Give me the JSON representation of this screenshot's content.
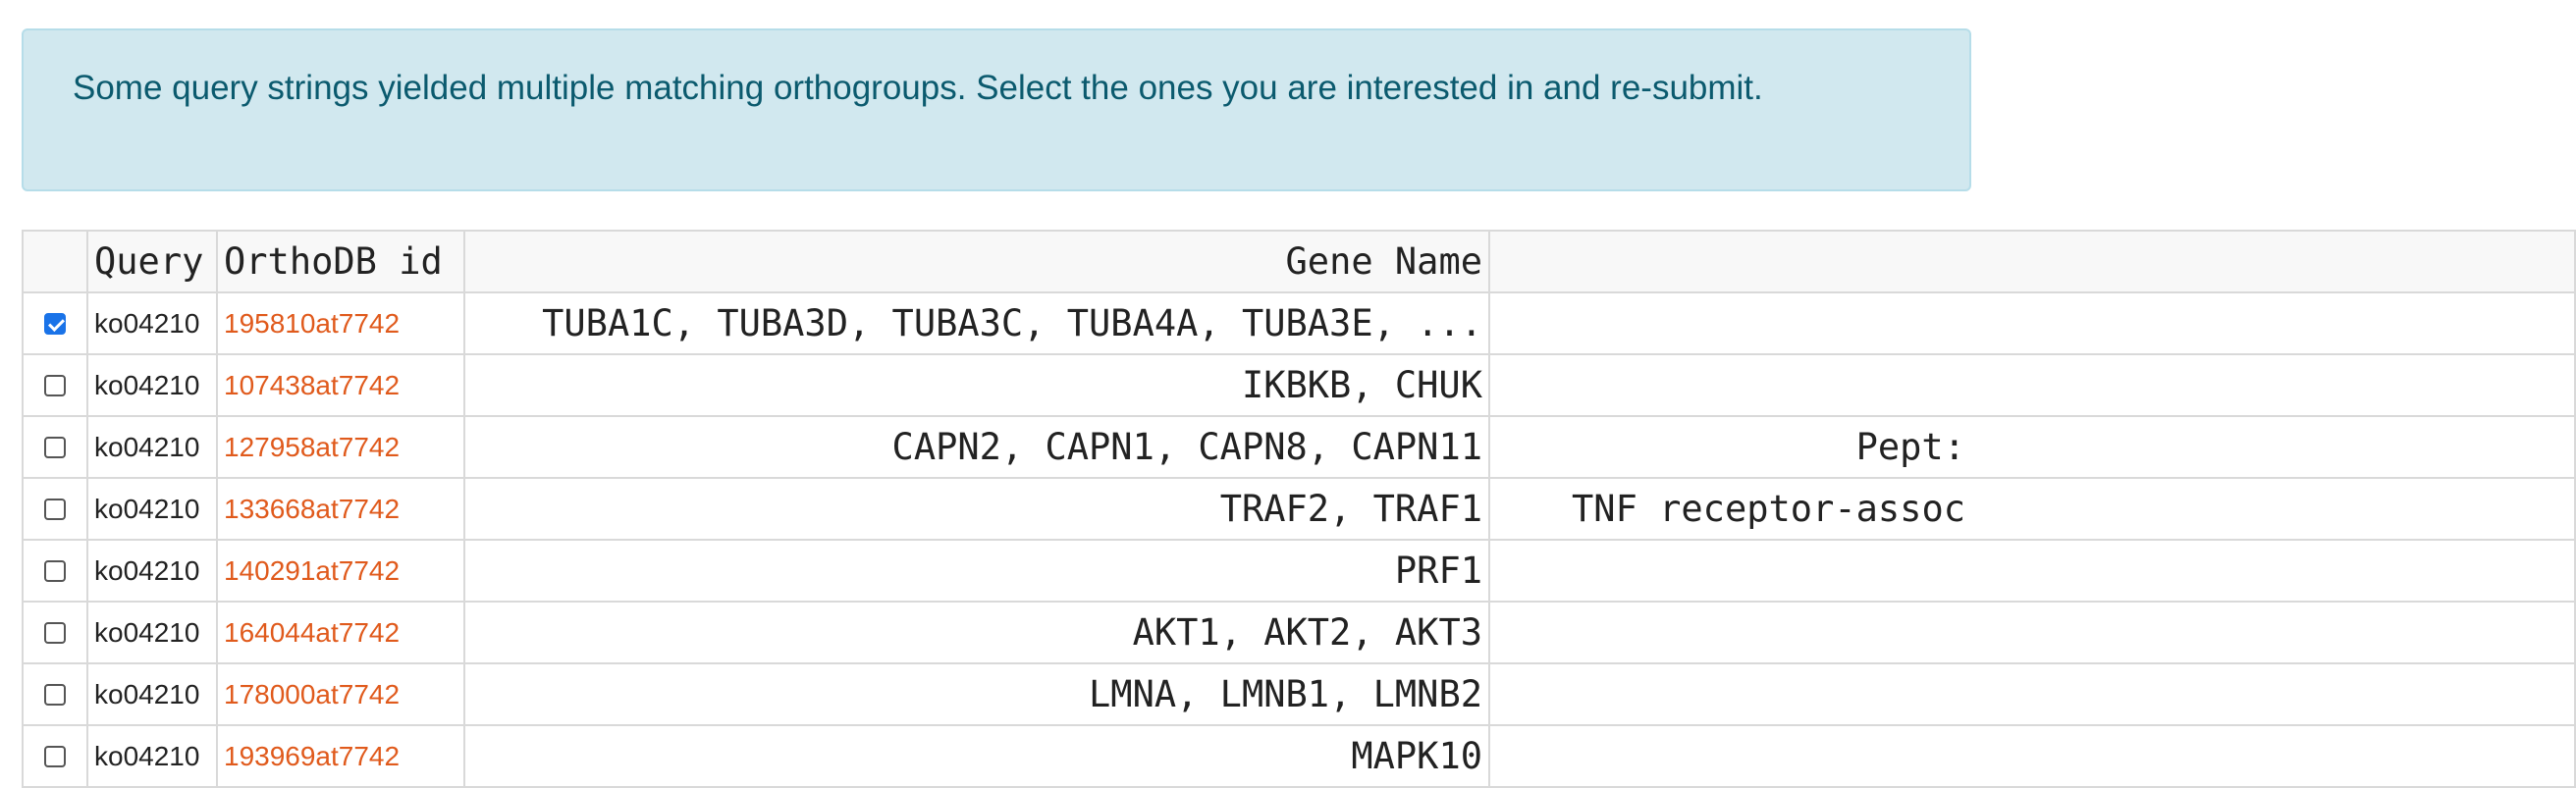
{
  "alert": {
    "message": "Some query strings yielded multiple matching orthogroups. Select the ones you are interested in and re-submit."
  },
  "table": {
    "headers": {
      "select": "",
      "query": "Query",
      "orthodb_id": "OrthoDB id",
      "gene_name": "Gene Name",
      "description": ""
    },
    "rows": [
      {
        "checked": true,
        "query": "ko04210",
        "orthodb_id": "195810at7742",
        "gene_name": "TUBA1C, TUBA3D, TUBA3C, TUBA4A, TUBA3E, ...",
        "description": ""
      },
      {
        "checked": false,
        "query": "ko04210",
        "orthodb_id": "107438at7742",
        "gene_name": "IKBKB, CHUK",
        "description": ""
      },
      {
        "checked": false,
        "query": "ko04210",
        "orthodb_id": "127958at7742",
        "gene_name": "CAPN2, CAPN1, CAPN8, CAPN11",
        "description": "Pept:"
      },
      {
        "checked": false,
        "query": "ko04210",
        "orthodb_id": "133668at7742",
        "gene_name": "TRAF2, TRAF1",
        "description": "TNF receptor-assoc"
      },
      {
        "checked": false,
        "query": "ko04210",
        "orthodb_id": "140291at7742",
        "gene_name": "PRF1",
        "description": ""
      },
      {
        "checked": false,
        "query": "ko04210",
        "orthodb_id": "164044at7742",
        "gene_name": "AKT1, AKT2, AKT3",
        "description": ""
      },
      {
        "checked": false,
        "query": "ko04210",
        "orthodb_id": "178000at7742",
        "gene_name": "LMNA, LMNB1, LMNB2",
        "description": ""
      },
      {
        "checked": false,
        "query": "ko04210",
        "orthodb_id": "193969at7742",
        "gene_name": "MAPK10",
        "description": ""
      }
    ]
  }
}
